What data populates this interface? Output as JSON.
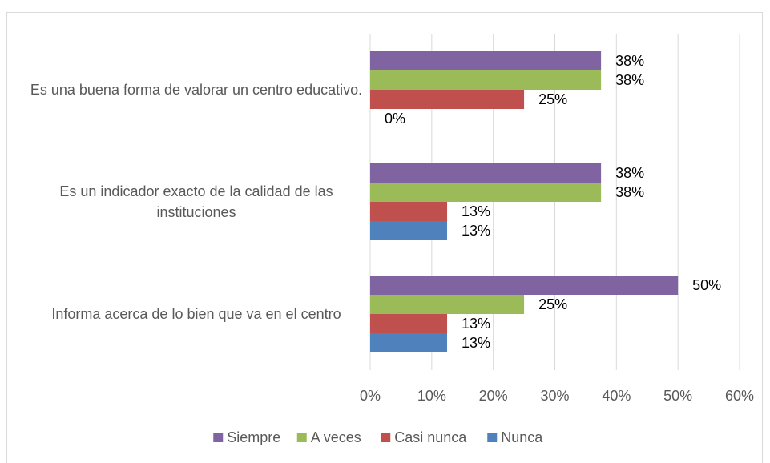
{
  "chart_data": {
    "type": "bar",
    "orientation": "horizontal",
    "categories": [
      "Es una buena forma de valorar un centro educativo.",
      "Es un indicador exacto de la calidad de las instituciones",
      "Informa acerca de lo bien que va en el centro"
    ],
    "series": [
      {
        "name": "Siempre",
        "color": "#8064a2",
        "values": [
          37.5,
          37.5,
          50
        ],
        "value_labels": [
          "38%",
          "38%",
          "50%"
        ]
      },
      {
        "name": "A veces",
        "color": "#9bbb59",
        "values": [
          37.5,
          37.5,
          25
        ],
        "value_labels": [
          "38%",
          "38%",
          "25%"
        ]
      },
      {
        "name": "Casi nunca",
        "color": "#c0504d",
        "values": [
          25,
          12.5,
          12.5
        ],
        "value_labels": [
          "25%",
          "13%",
          "13%"
        ]
      },
      {
        "name": "Nunca",
        "color": "#4f81bd",
        "values": [
          0,
          12.5,
          12.5
        ],
        "value_labels": [
          "0%",
          "13%",
          "13%"
        ]
      }
    ],
    "xlim": [
      0,
      60
    ],
    "xticks": [
      {
        "value": 0,
        "label": "0%"
      },
      {
        "value": 10,
        "label": "10%"
      },
      {
        "value": 20,
        "label": "20%"
      },
      {
        "value": 30,
        "label": "30%"
      },
      {
        "value": 40,
        "label": "40%"
      },
      {
        "value": 50,
        "label": "50%"
      },
      {
        "value": 60,
        "label": "60%"
      }
    ],
    "grid": true,
    "legend": "bottom"
  }
}
